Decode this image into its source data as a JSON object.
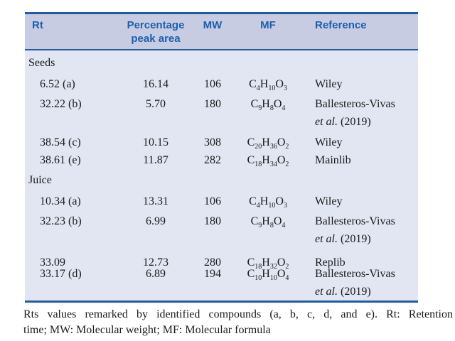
{
  "table": {
    "header": {
      "rt": "Rt",
      "pct": "Percentage peak area",
      "mw": "MW",
      "mf": "MF",
      "ref": "Reference"
    },
    "sections": [
      {
        "label": "Seeds",
        "rows": [
          {
            "rt": "6.52 (a)",
            "pct": "16.14",
            "mw": "106",
            "mf": {
              "e1": "C",
              "n1": "4",
              "e2": "H",
              "n2": "10",
              "e3": "O",
              "n3": "3"
            },
            "ref1": "Wiley"
          },
          {
            "rt": "32.22 (b)",
            "pct": "5.70",
            "mw": "180",
            "mf": {
              "e1": "C",
              "n1": "9",
              "e2": "H",
              "n2": "8",
              "e3": "O",
              "n3": "4"
            },
            "ref1": "Ballesteros-Vivas",
            "ref2_italic": "et al.",
            "ref2_rest": " (2019)"
          },
          {
            "rt": "38.54 (c)",
            "pct": "10.15",
            "mw": "308",
            "mf": {
              "e1": "C",
              "n1": "20",
              "e2": "H",
              "n2": "36",
              "e3": "O",
              "n3": "2"
            },
            "ref1": "Wiley"
          },
          {
            "rt": "38.61 (e)",
            "pct": "11.87",
            "mw": "282",
            "mf": {
              "e1": "C",
              "n1": "18",
              "e2": "H",
              "n2": "34",
              "e3": "O",
              "n3": "2"
            },
            "ref1": "Mainlib"
          }
        ]
      },
      {
        "label": "Juice",
        "rows": [
          {
            "rt": "10.34 (a)",
            "pct": "13.31",
            "mw": "106",
            "mf": {
              "e1": "C",
              "n1": "4",
              "e2": "H",
              "n2": "10",
              "e3": "O",
              "n3": "3"
            },
            "ref1": "Wiley"
          },
          {
            "rt": "32.23 (b)",
            "pct": "6.99",
            "mw": "180",
            "mf": {
              "e1": "C",
              "n1": "9",
              "e2": "H",
              "n2": "8",
              "e3": "O",
              "n3": "4"
            },
            "ref1": "Ballesteros-Vivas",
            "ref2_italic": "et al.",
            "ref2_rest": " (2019)"
          },
          {
            "rt": "33.09",
            "pct": "12.73",
            "mw": "280",
            "mf": {
              "e1": "C",
              "n1": "18",
              "e2": "H",
              "n2": "32",
              "e3": "O",
              "n3": "2"
            },
            "ref1": "Replib"
          },
          {
            "rt": "33.17 (d)",
            "pct": "6.89",
            "mw": "194",
            "mf": {
              "e1": "C",
              "n1": "10",
              "e2": "H",
              "n2": "10",
              "e3": "O",
              "n3": "4"
            },
            "ref1": "Ballesteros-Vivas",
            "ref2_italic": "et al.",
            "ref2_rest": " (2019)"
          }
        ]
      }
    ]
  },
  "footnote": {
    "line1": "Rts values remarked by identified compounds (a, b, c, d, and e). Rt: Retention",
    "line2": "time; MW: Molecular weight; MF: Molecular formula"
  },
  "colors": {
    "rule": "#1f5ca8",
    "header_bg": "#c8cce3",
    "body_bg": "#e2e5f2",
    "header_text": "#1d5fae",
    "body_text": "#1b1b1b"
  }
}
